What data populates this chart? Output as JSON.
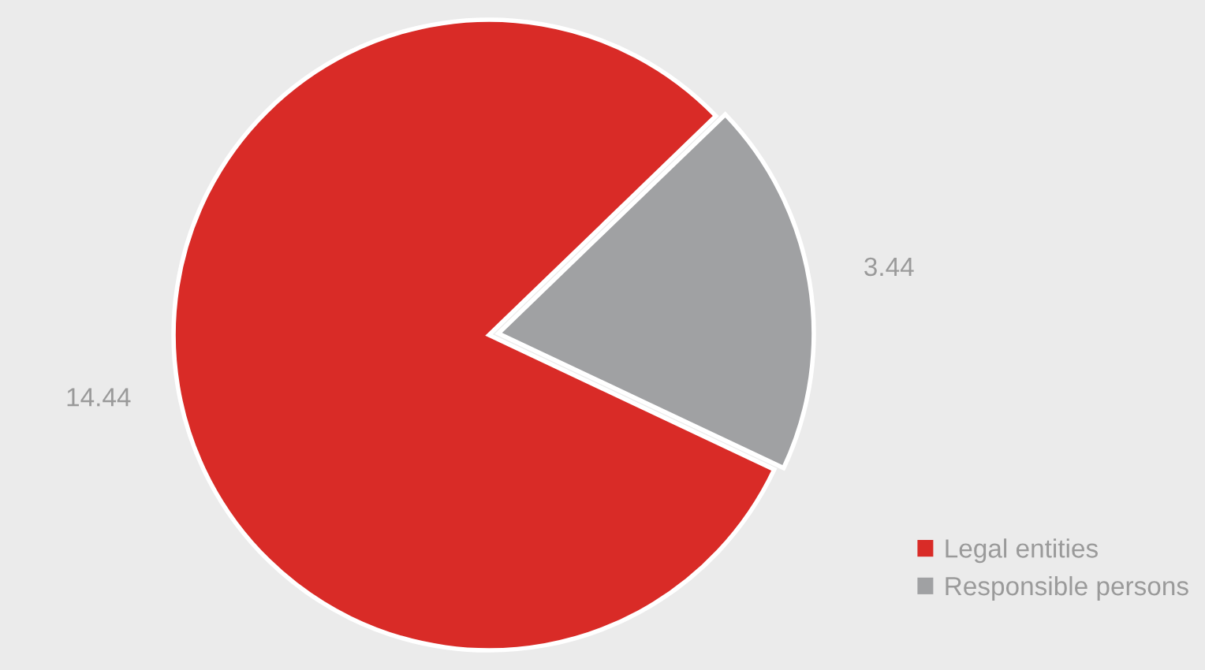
{
  "chart_data": {
    "type": "pie",
    "categories": [
      "Legal entities",
      "Responsible persons"
    ],
    "values": [
      14.44,
      3.44
    ],
    "colors": [
      "#d92b27",
      "#a0a1a3"
    ],
    "data_labels": true,
    "legend": "bottom right"
  }
}
